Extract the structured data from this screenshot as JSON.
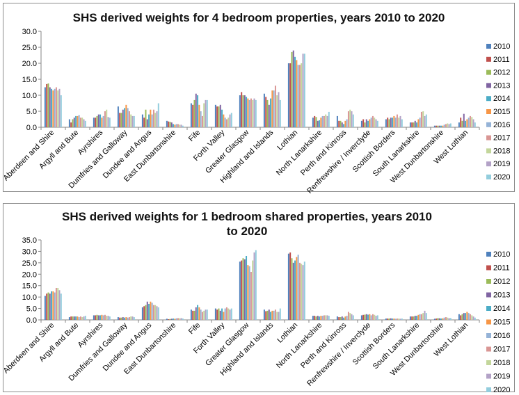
{
  "series_colors": [
    "#4F81BD",
    "#C0504D",
    "#9BBB59",
    "#8064A2",
    "#4BACC6",
    "#F79646",
    "#95B3D7",
    "#D99694",
    "#C3D69B",
    "#B3A2C7",
    "#93CDDD"
  ],
  "chart_data": [
    {
      "type": "bar",
      "title": "SHS derived weights for 4 bedroom properties, years 2010 to 2020",
      "xlabel": "",
      "ylabel": "",
      "ylim": [
        0,
        30
      ],
      "yticks": [
        "0.0",
        "5.0",
        "10.0",
        "15.0",
        "20.0",
        "25.0",
        "30.0"
      ],
      "legend_position": "right",
      "grid": false,
      "categories": [
        "Aberdeen and Shire",
        "Argyll and Bute",
        "Ayrshires",
        "Dumfries and Galloway",
        "Dundee and Angus",
        "East Dunbartonshire",
        "Fife",
        "Forth Valley",
        "Greater Glasgow",
        "Highland and Islands",
        "Lothian",
        "North Lanarkshire",
        "Perth and Kinross",
        "Renfrewshire / Inverclyde",
        "Scottish Borders",
        "South Lanarkshire",
        "West Dunbartonshire",
        "West Lothian"
      ],
      "series": [
        {
          "name": "2010",
          "values": [
            12.5,
            2.5,
            3.0,
            6.5,
            4.0,
            2.0,
            7.5,
            7.0,
            10.0,
            10.5,
            20.0,
            3.0,
            3.5,
            2.0,
            2.5,
            1.5,
            0.5,
            1.5
          ]
        },
        {
          "name": "2011",
          "values": [
            13.5,
            1.5,
            3.0,
            4.5,
            3.0,
            1.8,
            7.0,
            6.5,
            11.0,
            9.5,
            20.0,
            3.5,
            2.0,
            2.5,
            3.0,
            1.5,
            0.5,
            3.0
          ]
        },
        {
          "name": "2012",
          "values": [
            13.7,
            2.5,
            3.5,
            4.5,
            5.5,
            1.7,
            8.5,
            6.5,
            10.0,
            8.5,
            23.5,
            3.2,
            2.0,
            1.5,
            2.5,
            1.5,
            0.5,
            2.0
          ]
        },
        {
          "name": "2013",
          "values": [
            12.5,
            3.0,
            4.0,
            5.5,
            2.5,
            1.5,
            10.5,
            7.0,
            10.0,
            7.0,
            24.0,
            2.0,
            1.5,
            2.5,
            3.0,
            2.0,
            0.5,
            4.2
          ]
        },
        {
          "name": "2014",
          "values": [
            12.0,
            3.5,
            4.0,
            6.0,
            4.0,
            1.0,
            10.0,
            5.5,
            9.5,
            9.0,
            22.0,
            2.2,
            1.0,
            2.0,
            3.0,
            1.5,
            0.5,
            2.0
          ]
        },
        {
          "name": "2015",
          "values": [
            11.5,
            3.5,
            3.0,
            7.0,
            5.5,
            0.8,
            7.0,
            4.0,
            9.0,
            11.5,
            21.0,
            3.0,
            2.0,
            2.5,
            3.5,
            2.5,
            0.5,
            2.5
          ]
        },
        {
          "name": "2016",
          "values": [
            12.0,
            3.8,
            3.5,
            6.0,
            4.0,
            1.0,
            5.0,
            3.0,
            8.5,
            11.5,
            19.5,
            3.5,
            2.5,
            3.0,
            3.0,
            3.0,
            0.8,
            3.0
          ]
        },
        {
          "name": "2017",
          "values": [
            12.5,
            3.0,
            5.0,
            5.0,
            5.5,
            1.0,
            3.5,
            2.5,
            9.0,
            13.0,
            19.5,
            3.5,
            5.0,
            3.5,
            4.0,
            4.8,
            1.0,
            3.5
          ]
        },
        {
          "name": "2018",
          "values": [
            11.5,
            3.0,
            5.5,
            4.0,
            4.5,
            0.8,
            7.5,
            3.0,
            8.5,
            10.0,
            20.0,
            4.0,
            5.5,
            3.0,
            3.0,
            5.0,
            1.2,
            3.2
          ]
        },
        {
          "name": "2019",
          "values": [
            12.0,
            2.5,
            3.2,
            3.5,
            5.0,
            0.8,
            8.5,
            4.0,
            9.0,
            11.0,
            23.0,
            3.5,
            5.0,
            2.5,
            3.5,
            3.5,
            1.0,
            2.5
          ]
        },
        {
          "name": "2020",
          "values": [
            10.0,
            2.0,
            3.0,
            3.5,
            7.5,
            0.5,
            8.5,
            4.5,
            8.5,
            8.5,
            23.0,
            4.8,
            4.0,
            2.0,
            2.5,
            4.0,
            1.2,
            1.5
          ]
        }
      ]
    },
    {
      "type": "bar",
      "title": "SHS derived weights for 1 bedroom shared properties, years 2010 to 2020",
      "xlabel": "",
      "ylabel": "",
      "ylim": [
        0,
        35
      ],
      "yticks": [
        "0.0",
        "5.0",
        "10.0",
        "15.0",
        "20.0",
        "25.0",
        "30.0",
        "35.0"
      ],
      "legend_position": "right",
      "grid": false,
      "categories": [
        "Aberdeen and Shire",
        "Argyll and Bute",
        "Ayrshires",
        "Dumfries and Galloway",
        "Dundee and Angus",
        "East Dunbartonshire",
        "Fife",
        "Forth Valley",
        "Greater Glasgow",
        "Highland and Islands",
        "Lothian",
        "North Lanarkshire",
        "Perth and Kinross",
        "Renfrewshire / Inverclyde",
        "Scottish Borders",
        "South Lanarkshire",
        "West Dunbartonshire",
        "West Lothian"
      ],
      "series": [
        {
          "name": "2010",
          "values": [
            10.5,
            1.2,
            2.0,
            1.2,
            5.5,
            0.5,
            4.5,
            5.0,
            25.5,
            4.5,
            29.0,
            1.8,
            1.5,
            2.0,
            0.6,
            1.5,
            0.5,
            2.5
          ]
        },
        {
          "name": "2011",
          "values": [
            11.5,
            1.5,
            2.0,
            1.0,
            6.0,
            0.3,
            4.0,
            4.5,
            26.0,
            3.8,
            29.5,
            1.8,
            1.2,
            2.2,
            0.6,
            1.5,
            0.6,
            2.0
          ]
        },
        {
          "name": "2012",
          "values": [
            12.0,
            1.5,
            2.2,
            1.0,
            6.5,
            0.4,
            4.0,
            5.0,
            27.0,
            4.0,
            27.0,
            1.5,
            1.2,
            2.3,
            0.6,
            1.5,
            0.8,
            2.5
          ]
        },
        {
          "name": "2013",
          "values": [
            11.5,
            1.5,
            2.0,
            1.2,
            8.0,
            0.5,
            5.5,
            4.0,
            26.5,
            4.5,
            25.0,
            1.8,
            1.5,
            2.5,
            0.7,
            1.8,
            0.7,
            3.0
          ]
        },
        {
          "name": "2014",
          "values": [
            12.5,
            1.5,
            2.0,
            1.0,
            7.0,
            0.6,
            6.5,
            5.0,
            28.0,
            3.5,
            26.0,
            1.5,
            1.0,
            2.3,
            0.6,
            1.8,
            0.6,
            3.0
          ]
        },
        {
          "name": "2015",
          "values": [
            12.5,
            1.5,
            2.2,
            1.2,
            8.0,
            0.5,
            5.5,
            3.5,
            24.0,
            4.0,
            27.5,
            1.8,
            1.5,
            2.5,
            0.6,
            2.2,
            0.7,
            3.5
          ]
        },
        {
          "name": "2016",
          "values": [
            12.0,
            1.2,
            2.0,
            1.0,
            7.5,
            0.7,
            4.5,
            5.0,
            23.5,
            4.0,
            28.5,
            1.8,
            1.8,
            2.0,
            0.5,
            2.5,
            1.0,
            3.0
          ]
        },
        {
          "name": "2017",
          "values": [
            14.0,
            1.5,
            2.2,
            1.2,
            6.5,
            0.8,
            3.5,
            5.5,
            21.0,
            4.5,
            25.0,
            2.0,
            3.5,
            2.5,
            0.6,
            2.5,
            1.2,
            2.5
          ]
        },
        {
          "name": "2018",
          "values": [
            14.0,
            1.2,
            1.8,
            1.5,
            6.5,
            0.7,
            4.0,
            5.0,
            26.0,
            3.5,
            24.5,
            2.0,
            3.0,
            2.2,
            0.6,
            3.0,
            1.0,
            2.0
          ]
        },
        {
          "name": "2019",
          "values": [
            13.0,
            1.5,
            1.8,
            1.5,
            6.0,
            0.8,
            4.5,
            4.5,
            29.5,
            3.5,
            24.0,
            2.0,
            2.5,
            1.8,
            0.5,
            4.0,
            0.8,
            1.5
          ]
        },
        {
          "name": "2020",
          "values": [
            11.5,
            1.8,
            1.5,
            1.2,
            5.5,
            0.6,
            4.5,
            5.0,
            30.5,
            5.0,
            25.5,
            1.8,
            2.0,
            2.0,
            0.6,
            3.0,
            0.8,
            1.0
          ]
        }
      ]
    }
  ]
}
